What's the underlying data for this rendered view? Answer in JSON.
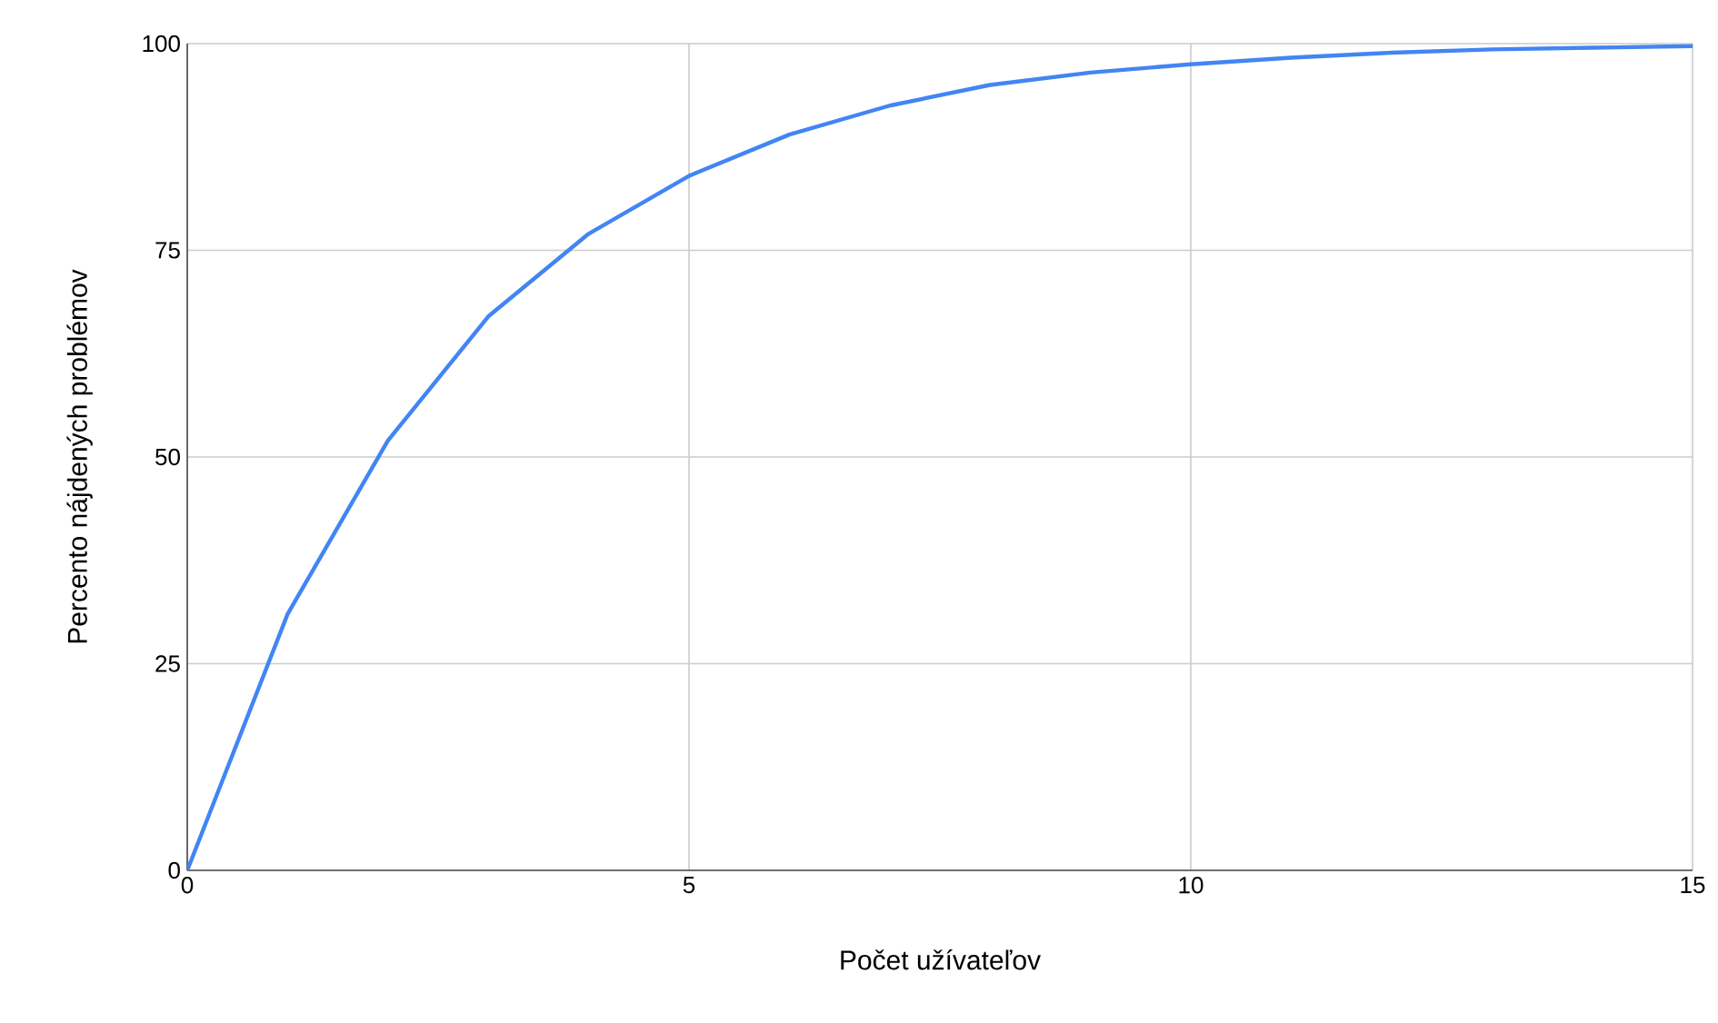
{
  "chart_data": {
    "type": "line",
    "xlabel": "Počet užívateľov",
    "ylabel": "Percento nájdených problémov",
    "x": [
      0,
      1,
      2,
      3,
      4,
      5,
      6,
      7,
      8,
      9,
      10,
      11,
      12,
      13,
      14,
      15
    ],
    "series": [
      {
        "color": "#4285f4",
        "values": [
          0,
          31,
          52,
          67,
          77,
          84,
          89,
          92.5,
          95,
          96.5,
          97.5,
          98.3,
          98.9,
          99.3,
          99.5,
          99.7
        ]
      }
    ],
    "xlim": [
      0,
      15
    ],
    "xticks": [
      0,
      5,
      10,
      15
    ],
    "ylim": [
      0,
      100
    ],
    "yticks": [
      0,
      25,
      50,
      75,
      100
    ],
    "grid": true,
    "marker": "none",
    "line_style": "solid"
  }
}
